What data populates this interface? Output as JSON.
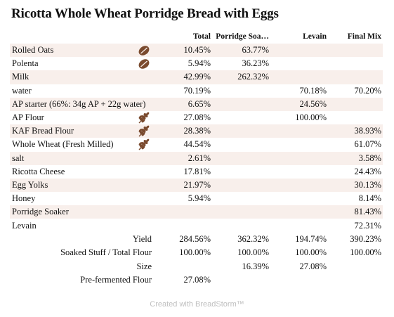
{
  "title": "Ricotta Whole Wheat Porridge Bread with Eggs",
  "columns": [
    "Total",
    "Porridge Soa…",
    "Levain",
    "Final Mix"
  ],
  "rows": [
    {
      "name": "Rolled Oats",
      "icon": "grain-icon",
      "total": "10.45%",
      "porridge": "63.77%",
      "levain": "",
      "final": ""
    },
    {
      "name": "Polenta",
      "icon": "grain-icon",
      "total": "5.94%",
      "porridge": "36.23%",
      "levain": "",
      "final": ""
    },
    {
      "name": "Milk",
      "icon": "",
      "total": "42.99%",
      "porridge": "262.32%",
      "levain": "",
      "final": ""
    },
    {
      "name": "water",
      "icon": "",
      "total": "70.19%",
      "porridge": "",
      "levain": "70.18%",
      "final": "70.20%"
    },
    {
      "name": "AP starter (66%: 34g AP + 22g water)",
      "icon": "",
      "total": "6.65%",
      "porridge": "",
      "levain": "24.56%",
      "final": ""
    },
    {
      "name": "AP Flour",
      "icon": "wheat-icon",
      "total": "27.08%",
      "porridge": "",
      "levain": "100.00%",
      "final": ""
    },
    {
      "name": "KAF Bread Flour",
      "icon": "wheat-icon",
      "total": "28.38%",
      "porridge": "",
      "levain": "",
      "final": "38.93%"
    },
    {
      "name": "Whole Wheat (Fresh Milled)",
      "icon": "wheat-icon",
      "total": "44.54%",
      "porridge": "",
      "levain": "",
      "final": "61.07%"
    },
    {
      "name": "salt",
      "icon": "",
      "total": "2.61%",
      "porridge": "",
      "levain": "",
      "final": "3.58%"
    },
    {
      "name": "Ricotta Cheese",
      "icon": "",
      "total": "17.81%",
      "porridge": "",
      "levain": "",
      "final": "24.43%"
    },
    {
      "name": "Egg Yolks",
      "icon": "",
      "total": "21.97%",
      "porridge": "",
      "levain": "",
      "final": "30.13%"
    },
    {
      "name": "Honey",
      "icon": "",
      "total": "5.94%",
      "porridge": "",
      "levain": "",
      "final": "8.14%"
    },
    {
      "name": "Porridge Soaker",
      "icon": "",
      "total": "",
      "porridge": "",
      "levain": "",
      "final": "81.43%"
    },
    {
      "name": "Levain",
      "icon": "",
      "total": "",
      "porridge": "",
      "levain": "",
      "final": "72.31%"
    }
  ],
  "summary": [
    {
      "label": "Yield",
      "total": "284.56%",
      "porridge": "362.32%",
      "levain": "194.74%",
      "final": "390.23%"
    },
    {
      "label": "Soaked Stuff / Total Flour",
      "total": "100.00%",
      "porridge": "100.00%",
      "levain": "100.00%",
      "final": "100.00%"
    },
    {
      "label": "Size",
      "total": "",
      "porridge": "16.39%",
      "levain": "27.08%",
      "final": ""
    },
    {
      "label": "Pre-fermented Flour",
      "total": "27.08%",
      "porridge": "",
      "levain": "",
      "final": ""
    }
  ],
  "footer": "Created with BreadStorm™",
  "colors": {
    "row_shade": "#f8efeb",
    "icon_brown": "#7a4a2e",
    "footer_gray": "#c0c0c0"
  }
}
